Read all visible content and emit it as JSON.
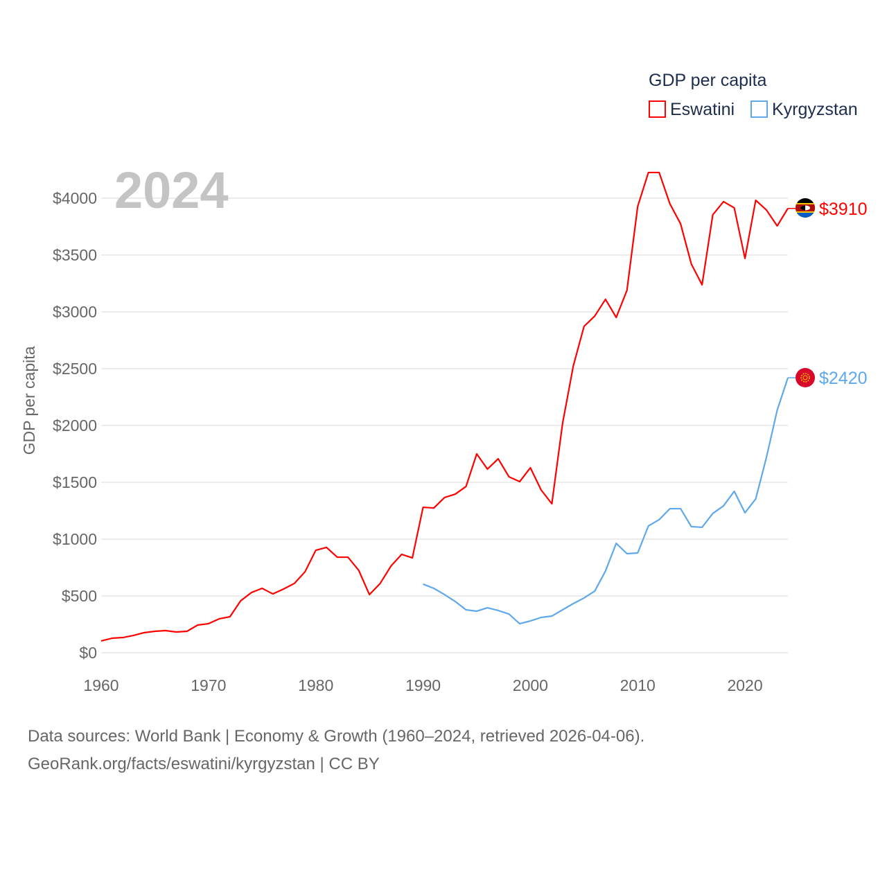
{
  "chart_data": {
    "type": "line",
    "title": "GDP per capita",
    "ylabel": "GDP per capita",
    "xlabel": "",
    "year_label": "2024",
    "ylim": [
      0,
      4000
    ],
    "xlim": [
      1960,
      2024
    ],
    "grid": true,
    "legend_position": "top-right",
    "y_ticks": [
      0,
      500,
      1000,
      1500,
      2000,
      2500,
      3000,
      3500,
      4000
    ],
    "y_tick_labels": [
      "$0",
      "$500",
      "$1000",
      "$1500",
      "$2000",
      "$2500",
      "$3000",
      "$3500",
      "$4000"
    ],
    "x_ticks": [
      1960,
      1970,
      1980,
      1990,
      2000,
      2010,
      2020
    ],
    "x_tick_labels": [
      "1960",
      "1970",
      "1980",
      "1990",
      "2000",
      "2010",
      "2020"
    ],
    "series": [
      {
        "name": "Eswatini",
        "color": "#ff0000",
        "end_label": "$3910",
        "start_year": 1960,
        "values": [
          104,
          128,
          134,
          152,
          177,
          189,
          195,
          183,
          189,
          244,
          256,
          299,
          317,
          457,
          530,
          567,
          518,
          561,
          610,
          713,
          902,
          927,
          841,
          841,
          726,
          512,
          610,
          762,
          866,
          835,
          1280,
          1274,
          1366,
          1396,
          1463,
          1750,
          1616,
          1707,
          1549,
          1506,
          1628,
          1433,
          1311,
          2018,
          2524,
          2872,
          2963,
          3110,
          2951,
          3189,
          3927,
          4226,
          4226,
          3951,
          3774,
          3421,
          3238,
          3854,
          3970,
          3915,
          3470,
          3982,
          3896,
          3756,
          3910
        ]
      },
      {
        "name": "Kyrgyzstan",
        "color": "#5fa8ea",
        "end_label": "$2420",
        "start_year": 1990,
        "values": [
          604,
          567,
          512,
          451,
          378,
          366,
          396,
          372,
          341,
          256,
          280,
          311,
          323,
          378,
          433,
          482,
          543,
          720,
          963,
          872,
          878,
          1116,
          1171,
          1268,
          1268,
          1110,
          1104,
          1226,
          1293,
          1421,
          1232,
          1354,
          1720,
          2134,
          2420
        ]
      }
    ]
  },
  "footer": {
    "line1": "Data sources: World Bank | Economy & Growth (1960–2024, retrieved 2026-04-06).",
    "line2": "GeoRank.org/facts/eswatini/kyrgyzstan | CC BY"
  }
}
